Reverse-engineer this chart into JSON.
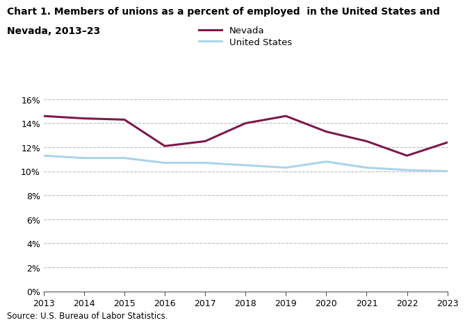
{
  "title_line1": "Chart 1. Members of unions as a percent of employed  in the United States and",
  "title_line2": "Nevada, 2013–23",
  "years": [
    2013,
    2014,
    2015,
    2016,
    2017,
    2018,
    2019,
    2020,
    2021,
    2022,
    2023
  ],
  "nevada": [
    14.6,
    14.4,
    14.3,
    12.1,
    12.5,
    14.0,
    14.6,
    13.3,
    12.5,
    11.3,
    12.4
  ],
  "us": [
    11.3,
    11.1,
    11.1,
    10.7,
    10.7,
    10.5,
    10.3,
    10.8,
    10.3,
    10.1,
    10.0
  ],
  "nevada_color": "#7b1a4b",
  "us_color": "#aad4ea",
  "ylim": [
    0,
    16
  ],
  "yticks": [
    0,
    2,
    4,
    6,
    8,
    10,
    12,
    14,
    16
  ],
  "grid_color": "#bbbbbb",
  "source_text": "Source: U.S. Bureau of Labor Statistics.",
  "legend_nevada": "Nevada",
  "legend_us": "United States",
  "line_width": 2.2
}
